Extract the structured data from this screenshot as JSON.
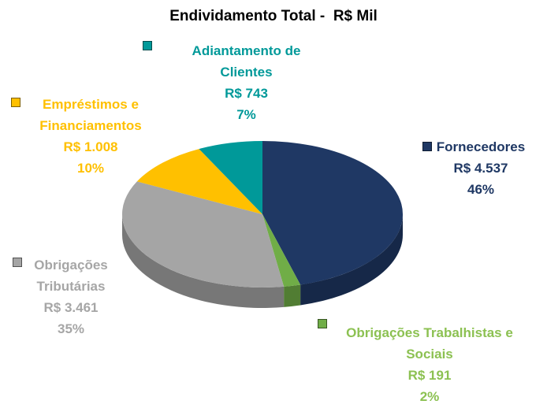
{
  "chart_data": {
    "type": "pie",
    "title": "Endividamento Total -  R$ Mil",
    "categories": [
      "Fornecedores",
      "Obrigações Trabalhistas e Sociais",
      "Obrigações Tributárias",
      "Empréstimos e Financiamentos",
      "Adiantamento de Clientes"
    ],
    "values": [
      4537,
      191,
      3461,
      1008,
      743
    ],
    "value_labels": [
      "R$ 4.537",
      "R$ 191",
      "R$ 3.461",
      "R$ 1.008",
      "R$ 743"
    ],
    "percent_labels": [
      "46%",
      "2%",
      "35%",
      "10%",
      "7%"
    ],
    "colors": [
      "#1f3864",
      "#70ad47",
      "#a5a5a5",
      "#ffc000",
      "#009999"
    ],
    "label_colors": [
      "#1f3864",
      "#8cc152",
      "#a6a6a6",
      "#ffc000",
      "#009999"
    ]
  }
}
